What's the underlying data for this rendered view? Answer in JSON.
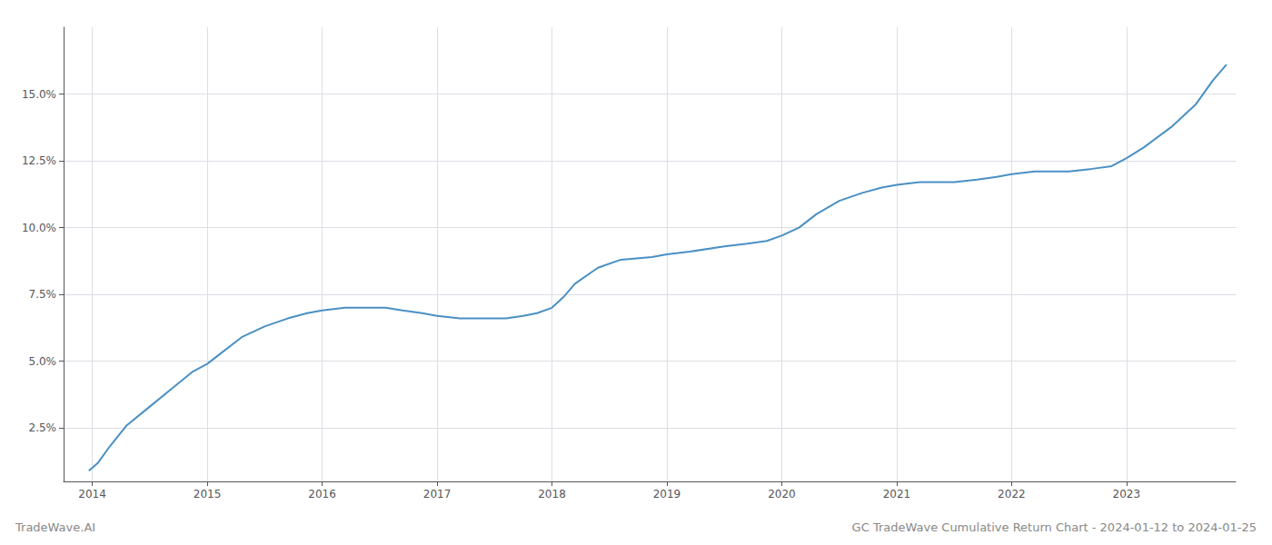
{
  "chart_data": {
    "type": "line",
    "title": "GC TradeWave Cumulative Return Chart - 2024-01-12 to 2024-01-25",
    "annotations": [
      "TradeWave.AI"
    ],
    "color": "#4a90c4",
    "grid": true,
    "x": [
      2013.97,
      2014.05,
      2014.15,
      2014.3,
      2014.5,
      2014.7,
      2014.87,
      2015.0,
      2015.15,
      2015.3,
      2015.5,
      2015.7,
      2015.87,
      2016.0,
      2016.2,
      2016.4,
      2016.55,
      2016.7,
      2016.87,
      2017.0,
      2017.2,
      2017.4,
      2017.6,
      2017.75,
      2017.87,
      2018.0,
      2018.1,
      2018.2,
      2018.4,
      2018.6,
      2018.87,
      2019.0,
      2019.2,
      2019.5,
      2019.7,
      2019.87,
      2020.0,
      2020.15,
      2020.3,
      2020.5,
      2020.7,
      2020.87,
      2021.0,
      2021.2,
      2021.5,
      2021.7,
      2021.87,
      2022.0,
      2022.2,
      2022.5,
      2022.7,
      2022.87,
      2023.0,
      2023.15,
      2023.4,
      2023.6,
      2023.75,
      2023.87
    ],
    "values": [
      0.009,
      0.012,
      0.018,
      0.026,
      0.033,
      0.04,
      0.046,
      0.049,
      0.054,
      0.059,
      0.063,
      0.066,
      0.068,
      0.069,
      0.07,
      0.07,
      0.07,
      0.069,
      0.068,
      0.067,
      0.066,
      0.066,
      0.066,
      0.067,
      0.068,
      0.07,
      0.074,
      0.079,
      0.085,
      0.088,
      0.089,
      0.09,
      0.091,
      0.093,
      0.094,
      0.095,
      0.097,
      0.1,
      0.105,
      0.11,
      0.113,
      0.115,
      0.116,
      0.117,
      0.117,
      0.118,
      0.119,
      0.12,
      0.121,
      0.121,
      0.122,
      0.123,
      0.126,
      0.13,
      0.138,
      0.146,
      0.155,
      0.161
    ],
    "xlim": [
      2013.75,
      2023.95
    ],
    "ylim": [
      0.005,
      0.175
    ],
    "xticks": [
      2014,
      2015,
      2016,
      2017,
      2018,
      2019,
      2020,
      2021,
      2022,
      2023
    ],
    "yticks": [
      {
        "value": 0.025,
        "label": "2.5%"
      },
      {
        "value": 0.05,
        "label": "5.0%"
      },
      {
        "value": 0.075,
        "label": "7.5%"
      },
      {
        "value": 0.1,
        "label": "10.0%"
      },
      {
        "value": 0.125,
        "label": "12.5%"
      },
      {
        "value": 0.15,
        "label": "15.0%"
      }
    ]
  }
}
